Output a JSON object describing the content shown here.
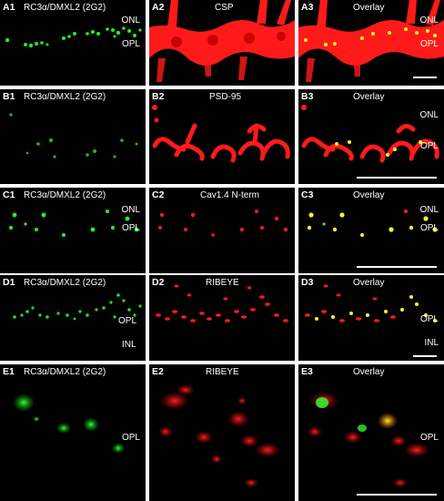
{
  "colors": {
    "green": "#22ff22",
    "red": "#ff1a1a",
    "yellow": "#f5f52a",
    "background": "#000000",
    "text": "#ffffff"
  },
  "rows": [
    {
      "panels": [
        {
          "id": "A1",
          "title": "RC3α/DMXL2 (2G2)",
          "layers": [
            "ONL",
            "OPL"
          ]
        },
        {
          "id": "A2",
          "title": "CSP",
          "layers": []
        },
        {
          "id": "A3",
          "title": "Overlay",
          "layers": [
            "ONL",
            "OPL"
          ]
        }
      ]
    },
    {
      "panels": [
        {
          "id": "B1",
          "title": "RC3α/DMXL2 (2G2)",
          "layers": []
        },
        {
          "id": "B2",
          "title": "PSD-95",
          "layers": []
        },
        {
          "id": "B3",
          "title": "Overlay",
          "layers": [
            "ONL",
            "OPL"
          ]
        }
      ]
    },
    {
      "panels": [
        {
          "id": "C1",
          "title": "RC3α/DMXL2 (2G2)",
          "layers": [
            "ONL",
            "OPL"
          ]
        },
        {
          "id": "C2",
          "title": "Cav1.4 N-term",
          "layers": []
        },
        {
          "id": "C3",
          "title": "Overlay",
          "layers": [
            "ONL",
            "OPL"
          ]
        }
      ]
    },
    {
      "panels": [
        {
          "id": "D1",
          "title": "RC3α/DMXL2 (2G2)",
          "layers": []
        },
        {
          "id": "D2",
          "title": "RIBEYE",
          "layers": []
        },
        {
          "id": "D3",
          "title": "Overlay",
          "layers": [
            "OPL",
            "INL"
          ]
        }
      ]
    },
    {
      "panels": [
        {
          "id": "E1",
          "title": "RC3α/DMXL2 (2G2)",
          "layers": [
            "OPL"
          ]
        },
        {
          "id": "E2",
          "title": "RIBEYE",
          "layers": []
        },
        {
          "id": "E3",
          "title": "Overlay",
          "layers": [
            "OPL"
          ]
        }
      ]
    }
  ]
}
